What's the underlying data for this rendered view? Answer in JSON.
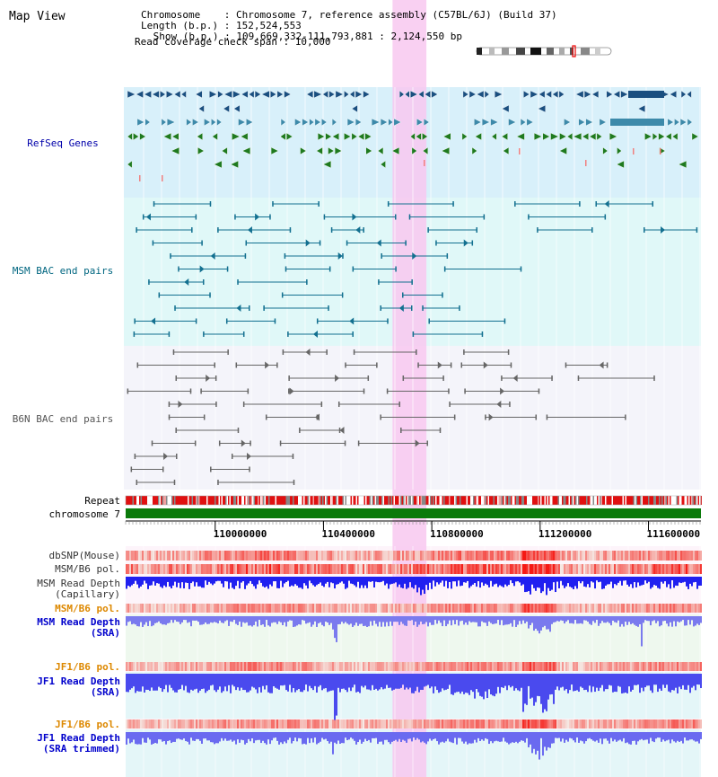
{
  "page": {
    "title": "Map View"
  },
  "info": {
    "chromosome": "Chromosome    : Chromosome 7, reference assembly (C57BL/6J) (Build 37)",
    "length": "Length (b.p.) : 152,524,553",
    "show": " Show (b.p.) : 109,669,332-111,793,881 : 2,124,550 bp",
    "coverage": "Read coverage check span : 10,000"
  },
  "view": {
    "range_start": 109669332,
    "range_end": 111793881,
    "highlight_start": 110655000,
    "highlight_end": 110780000
  },
  "tracks": {
    "refseq": "RefSeq Genes",
    "msm_bac": "MSM BAC end pairs",
    "b6n_bac": "B6N BAC end pairs",
    "repeat": "Repeat",
    "chromosome": "chromosome 7",
    "dbsnp": "dbSNP(Mouse)",
    "msm_b6_pol": "MSM/B6 pol.",
    "msm_depth_cap_1": "MSM Read Depth",
    "msm_depth_cap_2": "(Capillary)",
    "msm_b6_pol_2": "MSM/B6 pol.",
    "msm_depth_sra_1": "MSM Read Depth",
    "msm_depth_sra_2": "(SRA)",
    "jf1_b6_pol": "JF1/B6 pol.",
    "jf1_depth_sra_1": "JF1 Read Depth",
    "jf1_depth_sra_2": "(SRA)",
    "jf1_b6_pol_2": "JF1/B6 pol.",
    "jf1_depth_trim_1": "JF1 Read Depth",
    "jf1_depth_trim_2": "(SRA trimmed)"
  },
  "axis": {
    "ticks": [
      "110000000",
      "110400000",
      "110800000",
      "111200000",
      "111600000"
    ],
    "tick_values": [
      110000000,
      110400000,
      110800000,
      111200000,
      111600000
    ]
  },
  "colors": {
    "refseq_label": "#0000aa",
    "msm_label": "#006680",
    "b6n_label": "#555555",
    "pol_label": "#dd8800",
    "depth_label": "#0000cc",
    "highlight": "#f8c8f0",
    "refseq_bg": "#d8f0fa",
    "msm_bg": "#e0f8f8",
    "b6n_bg": "#f4f4fa",
    "refseq_feature_dark": "#1a4f80",
    "refseq_feature_mid": "#3d8aaa",
    "refseq_feature_green": "#1f7a1f",
    "msm_feature": "#137090",
    "b6n_feature": "#666666",
    "chromosome_bar": "#0b7a0b",
    "depth_bar": "#4a4aee"
  }
}
